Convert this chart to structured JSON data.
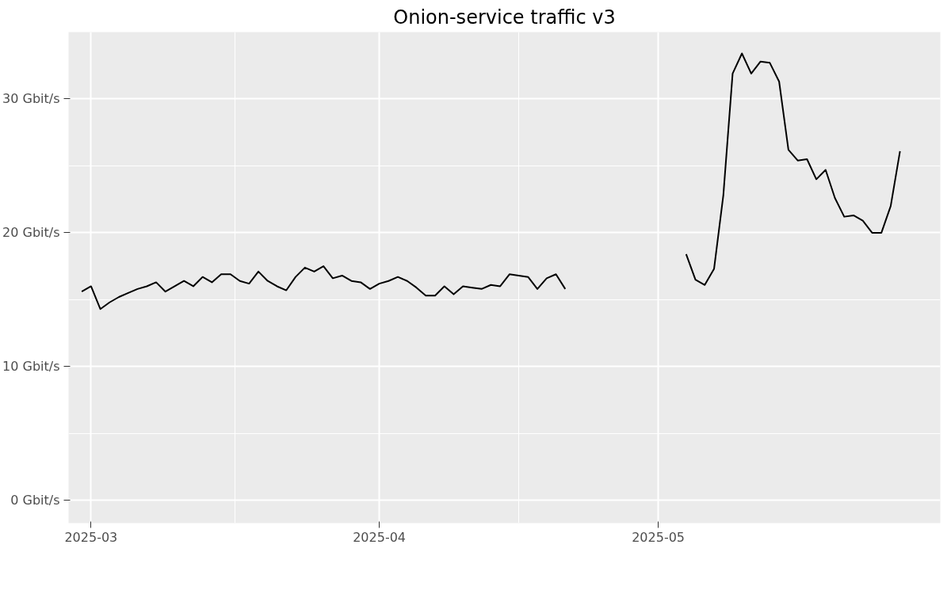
{
  "chart_data": {
    "type": "line",
    "title": "Onion-service traffic v3",
    "x": [
      "2025-02-28",
      "2025-03-01",
      "2025-03-02",
      "2025-03-03",
      "2025-03-04",
      "2025-03-05",
      "2025-03-06",
      "2025-03-07",
      "2025-03-08",
      "2025-03-09",
      "2025-03-10",
      "2025-03-11",
      "2025-03-12",
      "2025-03-13",
      "2025-03-14",
      "2025-03-15",
      "2025-03-16",
      "2025-03-17",
      "2025-03-18",
      "2025-03-19",
      "2025-03-20",
      "2025-03-21",
      "2025-03-22",
      "2025-03-23",
      "2025-03-24",
      "2025-03-25",
      "2025-03-26",
      "2025-03-27",
      "2025-03-28",
      "2025-03-29",
      "2025-03-30",
      "2025-03-31",
      "2025-04-01",
      "2025-04-02",
      "2025-04-03",
      "2025-04-04",
      "2025-04-05",
      "2025-04-06",
      "2025-04-07",
      "2025-04-08",
      "2025-04-09",
      "2025-04-10",
      "2025-04-11",
      "2025-04-12",
      "2025-04-13",
      "2025-04-14",
      "2025-04-15",
      "2025-04-16",
      "2025-04-17",
      "2025-04-18",
      "2025-04-19",
      "2025-04-20",
      "2025-04-21",
      "2025-04-22",
      "2025-05-04",
      "2025-05-05",
      "2025-05-06",
      "2025-05-07",
      "2025-05-08",
      "2025-05-09",
      "2025-05-10",
      "2025-05-11",
      "2025-05-12",
      "2025-05-13",
      "2025-05-14",
      "2025-05-15",
      "2025-05-16",
      "2025-05-17",
      "2025-05-18",
      "2025-05-19",
      "2025-05-20",
      "2025-05-21",
      "2025-05-22",
      "2025-05-23",
      "2025-05-24",
      "2025-05-25",
      "2025-05-26",
      "2025-05-27"
    ],
    "series": [
      {
        "color": "#000000",
        "values": [
          15.6,
          16.0,
          14.3,
          14.8,
          15.2,
          15.5,
          15.8,
          16.0,
          16.3,
          15.6,
          16.0,
          16.4,
          16.0,
          16.7,
          16.3,
          16.9,
          16.9,
          16.4,
          16.2,
          17.1,
          16.4,
          16.0,
          15.7,
          16.7,
          17.4,
          17.1,
          17.5,
          16.6,
          16.8,
          16.4,
          16.3,
          15.8,
          16.2,
          16.4,
          16.7,
          16.4,
          15.9,
          15.3,
          15.3,
          16.0,
          15.4,
          16.0,
          15.9,
          15.8,
          16.1,
          16.0,
          16.9,
          16.8,
          16.7,
          15.8,
          16.6,
          16.9,
          15.8,
          null,
          18.4,
          16.5,
          16.1,
          17.3,
          22.8,
          31.9,
          33.4,
          31.9,
          32.8,
          32.7,
          31.3,
          26.2,
          25.4,
          25.5,
          24.0,
          24.7,
          22.6,
          21.2,
          21.3,
          20.9,
          20.0,
          20.0,
          22.0,
          26.1
        ]
      }
    ],
    "xlim": [
      "2025-02-26T14:00",
      "2025-05-31T08:00"
    ],
    "xticks": [
      {
        "value": "2025-03-01",
        "label": "2025-03"
      },
      {
        "value": "2025-04-01",
        "label": "2025-04"
      },
      {
        "value": "2025-05-01",
        "label": "2025-05"
      }
    ],
    "ylim": [
      -1.7,
      35.0
    ],
    "yticks": [
      {
        "value": 0,
        "label": "0 Gbit/s"
      },
      {
        "value": 10,
        "label": "10 Gbit/s"
      },
      {
        "value": 20,
        "label": "20 Gbit/s"
      },
      {
        "value": 30,
        "label": "30 Gbit/s"
      }
    ],
    "grid": true
  }
}
